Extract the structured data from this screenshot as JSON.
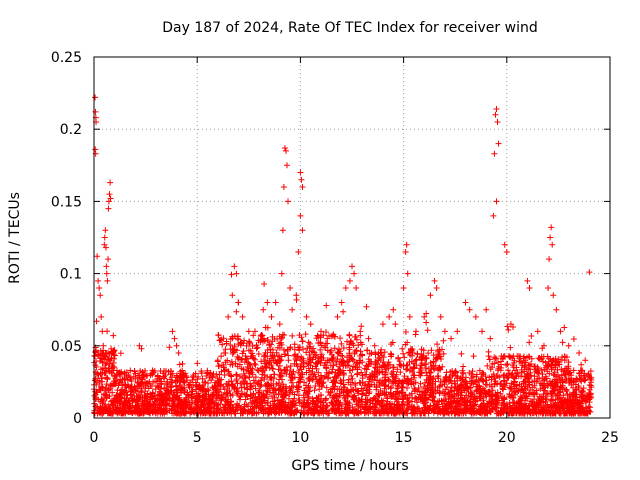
{
  "chart_data": {
    "type": "scatter",
    "title": "Day 187 of 2024, Rate Of TEC Index for receiver wind",
    "xlabel": "GPS time / hours",
    "ylabel": "ROTI / TECUs",
    "xlim": [
      0,
      25
    ],
    "ylim": [
      0,
      0.25
    ],
    "xticks": [
      0,
      5,
      10,
      15,
      20,
      25
    ],
    "yticks": [
      0,
      0.05,
      0.1,
      0.15,
      0.2,
      0.25
    ],
    "xtick_labels": [
      "0",
      "5",
      "10",
      "15",
      "20",
      "25"
    ],
    "ytick_labels": [
      "0",
      "0.05",
      "0.1",
      "0.15",
      "0.2",
      "0.25"
    ],
    "grid": true,
    "marker": "+",
    "color": "#ff0000",
    "series": [
      {
        "points": [
          [
            0.05,
            0.222
          ],
          [
            0.07,
            0.212
          ],
          [
            0.09,
            0.208
          ],
          [
            0.1,
            0.205
          ],
          [
            0.06,
            0.186
          ],
          [
            0.08,
            0.183
          ],
          [
            0.15,
            0.112
          ],
          [
            0.2,
            0.095
          ],
          [
            0.25,
            0.09
          ],
          [
            0.3,
            0.085
          ],
          [
            0.35,
            0.07
          ],
          [
            0.12,
            0.067
          ],
          [
            0.5,
            0.12
          ],
          [
            0.52,
            0.125
          ],
          [
            0.55,
            0.13
          ],
          [
            0.58,
            0.118
          ],
          [
            0.6,
            0.105
          ],
          [
            0.62,
            0.1
          ],
          [
            0.65,
            0.095
          ],
          [
            0.68,
            0.11
          ],
          [
            0.7,
            0.145
          ],
          [
            0.72,
            0.15
          ],
          [
            0.75,
            0.155
          ],
          [
            0.78,
            0.163
          ],
          [
            0.8,
            0.152
          ],
          [
            0.4,
            0.06
          ],
          [
            0.45,
            0.05
          ],
          [
            0.55,
            0.045
          ],
          [
            2.2,
            0.05
          ],
          [
            2.3,
            0.048
          ],
          [
            3.8,
            0.06
          ],
          [
            3.9,
            0.055
          ],
          [
            4.0,
            0.05
          ],
          [
            4.1,
            0.045
          ],
          [
            6.0,
            0.04
          ],
          [
            6.3,
            0.045
          ],
          [
            6.5,
            0.07
          ],
          [
            6.7,
            0.085
          ],
          [
            6.8,
            0.105
          ],
          [
            6.9,
            0.1
          ],
          [
            7.0,
            0.08
          ],
          [
            7.2,
            0.07
          ],
          [
            7.5,
            0.06
          ],
          [
            7.8,
            0.06
          ],
          [
            8.2,
            0.075
          ],
          [
            8.4,
            0.08
          ],
          [
            8.6,
            0.07
          ],
          [
            8.8,
            0.08
          ],
          [
            9.0,
            0.065
          ],
          [
            9.1,
            0.1
          ],
          [
            9.15,
            0.13
          ],
          [
            9.2,
            0.16
          ],
          [
            9.25,
            0.187
          ],
          [
            9.3,
            0.185
          ],
          [
            9.35,
            0.175
          ],
          [
            9.4,
            0.15
          ],
          [
            9.5,
            0.09
          ],
          [
            9.6,
            0.075
          ],
          [
            9.8,
            0.085
          ],
          [
            9.9,
            0.115
          ],
          [
            10.0,
            0.17
          ],
          [
            10.05,
            0.165
          ],
          [
            10.1,
            0.16
          ],
          [
            10.0,
            0.14
          ],
          [
            10.1,
            0.13
          ],
          [
            10.3,
            0.07
          ],
          [
            10.5,
            0.065
          ],
          [
            11.0,
            0.06
          ],
          [
            11.3,
            0.055
          ],
          [
            11.8,
            0.07
          ],
          [
            12.0,
            0.08
          ],
          [
            12.2,
            0.09
          ],
          [
            12.4,
            0.095
          ],
          [
            12.5,
            0.105
          ],
          [
            12.6,
            0.1
          ],
          [
            12.7,
            0.09
          ],
          [
            12.9,
            0.06
          ],
          [
            13.3,
            0.055
          ],
          [
            13.6,
            0.05
          ],
          [
            14.0,
            0.065
          ],
          [
            14.3,
            0.07
          ],
          [
            14.5,
            0.075
          ],
          [
            14.6,
            0.065
          ],
          [
            15.0,
            0.09
          ],
          [
            15.1,
            0.115
          ],
          [
            15.15,
            0.12
          ],
          [
            15.2,
            0.1
          ],
          [
            15.3,
            0.07
          ],
          [
            15.6,
            0.06
          ],
          [
            16.0,
            0.07
          ],
          [
            16.3,
            0.085
          ],
          [
            16.5,
            0.095
          ],
          [
            16.6,
            0.09
          ],
          [
            16.8,
            0.07
          ],
          [
            17.0,
            0.06
          ],
          [
            17.3,
            0.055
          ],
          [
            17.6,
            0.06
          ],
          [
            18.0,
            0.08
          ],
          [
            18.2,
            0.075
          ],
          [
            18.5,
            0.07
          ],
          [
            18.8,
            0.06
          ],
          [
            19.0,
            0.075
          ],
          [
            19.2,
            0.055
          ],
          [
            19.35,
            0.14
          ],
          [
            19.4,
            0.183
          ],
          [
            19.45,
            0.21
          ],
          [
            19.5,
            0.214
          ],
          [
            19.55,
            0.205
          ],
          [
            19.6,
            0.19
          ],
          [
            19.5,
            0.15
          ],
          [
            19.9,
            0.12
          ],
          [
            20.0,
            0.115
          ],
          [
            20.2,
            0.065
          ],
          [
            20.3,
            0.063
          ],
          [
            21.0,
            0.095
          ],
          [
            21.1,
            0.09
          ],
          [
            21.5,
            0.06
          ],
          [
            21.8,
            0.05
          ],
          [
            22.0,
            0.09
          ],
          [
            22.05,
            0.11
          ],
          [
            22.1,
            0.125
          ],
          [
            22.15,
            0.132
          ],
          [
            22.2,
            0.12
          ],
          [
            22.25,
            0.085
          ],
          [
            22.4,
            0.075
          ],
          [
            22.6,
            0.06
          ],
          [
            23.0,
            0.05
          ],
          [
            23.5,
            0.045
          ],
          [
            23.8,
            0.04
          ],
          [
            24.0,
            0.101
          ]
        ],
        "baseline_band": {
          "comment_range_hours": [
            0,
            24.1
          ],
          "typical_max": 0.03,
          "typical_min": 0.003
        }
      }
    ]
  }
}
